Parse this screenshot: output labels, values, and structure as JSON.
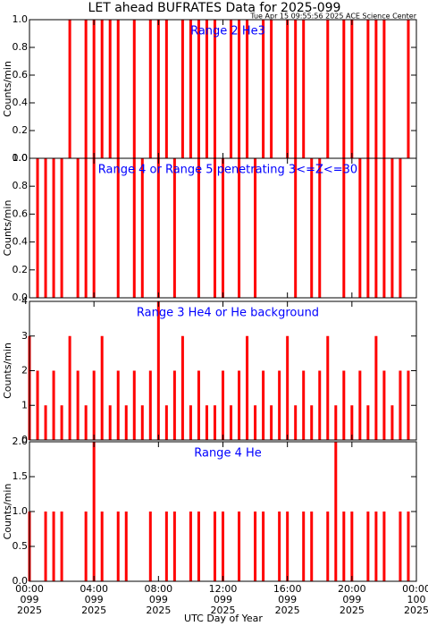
{
  "page": {
    "title": "LET ahead BUFRATES Data for 2025-099",
    "timestamp": "Tue Apr 15 09:55:56 2025 ACE Science Center",
    "xlabel": "UTC Day of Year"
  },
  "chart_data": [
    {
      "type": "bar",
      "label": "Range 2 He3",
      "ylabel": "Counts/min",
      "color": "#ff0000",
      "xlim": [
        0,
        24
      ],
      "ylim": [
        0,
        1
      ],
      "yticks": [
        {
          "value": 0,
          "label": "0.0"
        },
        {
          "value": 0.2,
          "label": "0.2"
        },
        {
          "value": 0.4,
          "label": "0.4"
        },
        {
          "value": 0.6,
          "label": "0.6"
        },
        {
          "value": 0.8,
          "label": "0.8"
        },
        {
          "value": 1,
          "label": "1.0"
        }
      ],
      "x": [
        0,
        0.5,
        1,
        1.5,
        2,
        2.5,
        3,
        3.5,
        4,
        4.5,
        5,
        5.5,
        6,
        6.5,
        7,
        7.5,
        8,
        8.5,
        9,
        9.5,
        10,
        10.5,
        11,
        11.5,
        12,
        12.5,
        13,
        13.5,
        14,
        14.5,
        15,
        15.5,
        16,
        16.5,
        17,
        17.5,
        18,
        18.5,
        19,
        19.5,
        20,
        20.5,
        21,
        21.5,
        22,
        22.5,
        23,
        23.5
      ],
      "values": [
        0,
        0,
        0,
        0,
        0,
        1,
        0,
        1,
        1,
        1,
        1,
        1,
        0,
        1,
        0,
        1,
        1,
        1,
        0,
        1,
        1,
        1,
        1,
        1,
        0,
        1,
        1,
        1,
        0,
        1,
        1,
        0,
        1,
        1,
        1,
        0,
        0,
        1,
        0,
        1,
        1,
        0,
        1,
        1,
        1,
        0,
        0,
        1
      ]
    },
    {
      "type": "bar",
      "label": "Range 4 or Range 5 penetrating 3<=Z<=30",
      "ylabel": "Counts/min",
      "color": "#ff0000",
      "xlim": [
        0,
        24
      ],
      "ylim": [
        0,
        1
      ],
      "yticks": [
        {
          "value": 0,
          "label": "0.0"
        },
        {
          "value": 0.2,
          "label": "0.2"
        },
        {
          "value": 0.4,
          "label": "0.4"
        },
        {
          "value": 0.6,
          "label": "0.6"
        },
        {
          "value": 0.8,
          "label": "0.8"
        },
        {
          "value": 1,
          "label": "1.0"
        }
      ],
      "x": [
        0,
        0.5,
        1,
        1.5,
        2,
        2.5,
        3,
        3.5,
        4,
        4.5,
        5,
        5.5,
        6,
        6.5,
        7,
        7.5,
        8,
        8.5,
        9,
        9.5,
        10,
        10.5,
        11,
        11.5,
        12,
        12.5,
        13,
        13.5,
        14,
        14.5,
        15,
        15.5,
        16,
        16.5,
        17,
        17.5,
        18,
        18.5,
        19,
        19.5,
        20,
        20.5,
        21,
        21.5,
        22,
        22.5,
        23,
        23.5
      ],
      "values": [
        0,
        1,
        1,
        1,
        1,
        0,
        1,
        1,
        1,
        0,
        0,
        1,
        0,
        1,
        1,
        0,
        1,
        0,
        1,
        0,
        0,
        1,
        0,
        1,
        1,
        0,
        1,
        0,
        1,
        0,
        0,
        0,
        0,
        1,
        0,
        1,
        1,
        0,
        0,
        1,
        0,
        1,
        1,
        1,
        1,
        1,
        1,
        0
      ]
    },
    {
      "type": "bar",
      "label": "Range 3 He4 or He background",
      "ylabel": "Counts/min",
      "color": "#ff0000",
      "xlim": [
        0,
        24
      ],
      "ylim": [
        0,
        4
      ],
      "yticks": [
        0,
        1,
        2,
        3,
        4
      ],
      "x": [
        0,
        0.5,
        1,
        1.5,
        2,
        2.5,
        3,
        3.5,
        4,
        4.5,
        5,
        5.5,
        6,
        6.5,
        7,
        7.5,
        8,
        8.5,
        9,
        9.5,
        10,
        10.5,
        11,
        11.5,
        12,
        12.5,
        13,
        13.5,
        14,
        14.5,
        15,
        15.5,
        16,
        16.5,
        17,
        17.5,
        18,
        18.5,
        19,
        19.5,
        20,
        20.5,
        21,
        21.5,
        22,
        22.5,
        23,
        23.5
      ],
      "values": [
        3,
        2,
        1,
        2,
        1,
        3,
        2,
        1,
        2,
        3,
        1,
        2,
        1,
        2,
        1,
        2,
        4,
        1,
        2,
        3,
        1,
        2,
        1,
        1,
        2,
        1,
        2,
        3,
        1,
        2,
        1,
        2,
        3,
        1,
        2,
        1,
        2,
        3,
        1,
        2,
        1,
        2,
        1,
        3,
        2,
        1,
        2,
        2
      ]
    },
    {
      "type": "bar",
      "label": "Range 4 He",
      "ylabel": "Counts/min",
      "color": "#ff0000",
      "xlim": [
        0,
        24
      ],
      "ylim": [
        0,
        2
      ],
      "yticks": [
        {
          "value": 0,
          "label": "0.0"
        },
        {
          "value": 0.5,
          "label": "0.5"
        },
        {
          "value": 1,
          "label": "1.0"
        },
        {
          "value": 1.5,
          "label": "1.5"
        },
        {
          "value": 2,
          "label": "2.0"
        }
      ],
      "xticks": [
        {
          "value": 0,
          "label": "00:00"
        },
        {
          "value": 4,
          "label": "04:00"
        },
        {
          "value": 8,
          "label": "08:00"
        },
        {
          "value": 12,
          "label": "12:00"
        },
        {
          "value": 16,
          "label": "16:00"
        },
        {
          "value": 20,
          "label": "20:00"
        },
        {
          "value": 24,
          "label": "00:00"
        }
      ],
      "xtick_days": [
        "099",
        "099",
        "099",
        "099",
        "099",
        "099",
        "100"
      ],
      "xtick_years": [
        "2025",
        "2025",
        "2025",
        "2025",
        "2025",
        "2025",
        "2025"
      ],
      "x": [
        0,
        0.5,
        1,
        1.5,
        2,
        2.5,
        3,
        3.5,
        4,
        4.5,
        5,
        5.5,
        6,
        6.5,
        7,
        7.5,
        8,
        8.5,
        9,
        9.5,
        10,
        10.5,
        11,
        11.5,
        12,
        12.5,
        13,
        13.5,
        14,
        14.5,
        15,
        15.5,
        16,
        16.5,
        17,
        17.5,
        18,
        18.5,
        19,
        19.5,
        20,
        20.5,
        21,
        21.5,
        22,
        22.5,
        23,
        23.5
      ],
      "values": [
        1,
        0,
        1,
        1,
        1,
        0,
        0,
        1,
        2,
        1,
        0,
        1,
        1,
        0,
        0,
        1,
        0,
        1,
        1,
        0,
        1,
        1,
        0,
        1,
        1,
        0,
        1,
        0,
        1,
        1,
        0,
        1,
        1,
        0,
        1,
        1,
        0,
        1,
        2,
        1,
        1,
        0,
        1,
        1,
        1,
        0,
        1,
        1
      ]
    }
  ]
}
